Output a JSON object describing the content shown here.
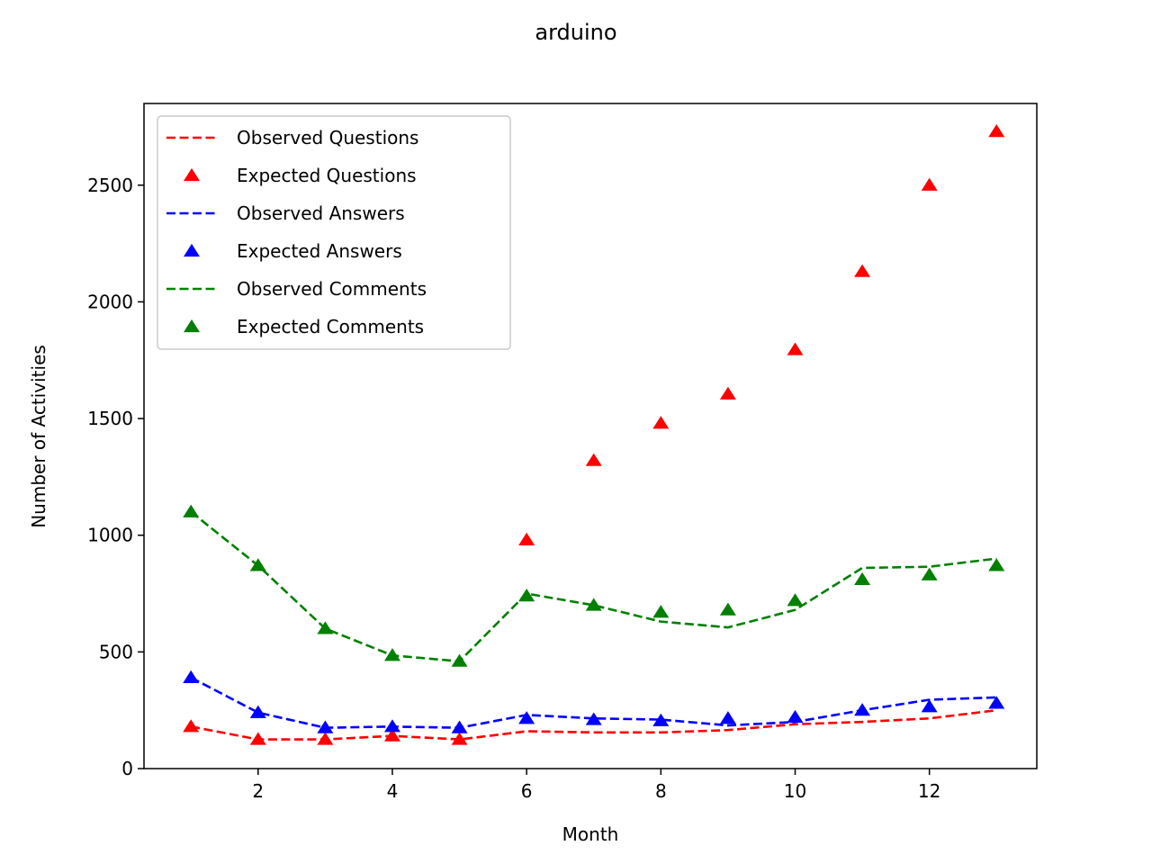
{
  "chart_data": {
    "type": "line",
    "title": "arduino",
    "xlabel": "Month",
    "ylabel": "Number of Activities",
    "xlim": [
      0.3,
      13.6
    ],
    "ylim": [
      0,
      2850
    ],
    "x_ticks": [
      2,
      4,
      6,
      8,
      10,
      12
    ],
    "y_ticks": [
      0,
      500,
      1000,
      1500,
      2000,
      2500
    ],
    "grid": false,
    "legend_position": "upper-left",
    "x": [
      1,
      2,
      3,
      4,
      5,
      6,
      7,
      8,
      9,
      10,
      11,
      12,
      13
    ],
    "series": [
      {
        "name": "Observed Questions",
        "style": "dashed-line",
        "color": "#ff0000",
        "x": [
          1,
          2,
          3,
          4,
          5,
          6,
          7,
          8,
          9,
          10,
          11,
          12,
          13
        ],
        "values": [
          180,
          125,
          125,
          140,
          125,
          160,
          155,
          155,
          165,
          190,
          200,
          215,
          250
        ]
      },
      {
        "name": "Expected Questions",
        "style": "triangle-markers",
        "color": "#ff0000",
        "x": [
          1,
          2,
          3,
          4,
          5,
          6,
          7,
          8,
          9,
          10,
          11,
          12,
          13
        ],
        "values": [
          180,
          125,
          125,
          140,
          125,
          980,
          1320,
          1480,
          1605,
          1795,
          2130,
          2500,
          2730
        ]
      },
      {
        "name": "Observed Answers",
        "style": "dashed-line",
        "color": "#0000ff",
        "x": [
          1,
          2,
          3,
          4,
          5,
          6,
          7,
          8,
          9,
          10,
          11,
          12,
          13
        ],
        "values": [
          390,
          240,
          175,
          180,
          175,
          230,
          215,
          210,
          185,
          200,
          250,
          295,
          305
        ]
      },
      {
        "name": "Expected Answers",
        "style": "triangle-markers",
        "color": "#0000ff",
        "x": [
          1,
          2,
          3,
          4,
          5,
          6,
          7,
          8,
          9,
          10,
          11,
          12,
          13
        ],
        "values": [
          390,
          240,
          175,
          180,
          175,
          215,
          210,
          205,
          215,
          220,
          250,
          265,
          280
        ]
      },
      {
        "name": "Observed Comments",
        "style": "dashed-line",
        "color": "#008000",
        "x": [
          1,
          2,
          3,
          4,
          5,
          6,
          7,
          8,
          9,
          10,
          11,
          12,
          13
        ],
        "values": [
          1100,
          870,
          600,
          485,
          460,
          750,
          700,
          630,
          605,
          680,
          860,
          865,
          900
        ]
      },
      {
        "name": "Expected Comments",
        "style": "triangle-markers",
        "color": "#008000",
        "x": [
          1,
          2,
          3,
          4,
          5,
          6,
          7,
          8,
          9,
          10,
          11,
          12,
          13
        ],
        "values": [
          1100,
          870,
          600,
          485,
          460,
          740,
          700,
          670,
          680,
          720,
          810,
          830,
          870
        ]
      }
    ]
  }
}
